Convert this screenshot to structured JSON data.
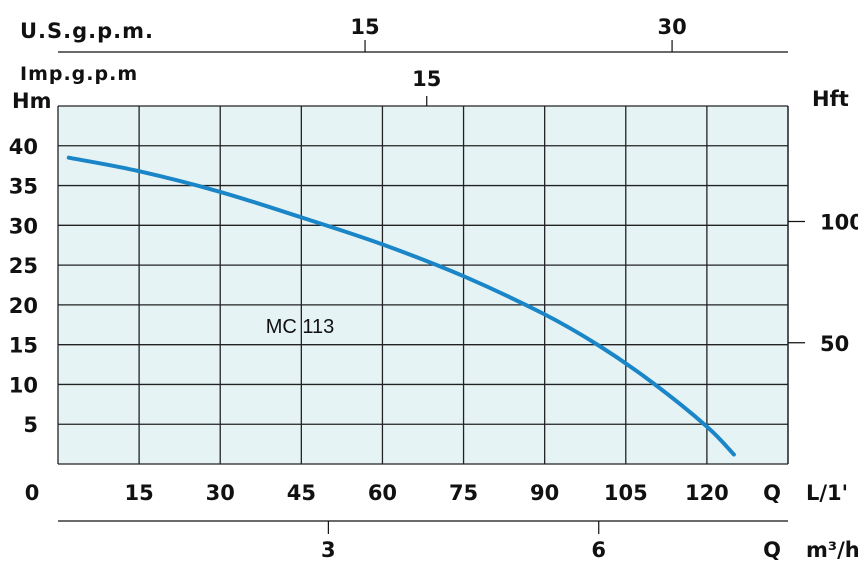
{
  "chart_data": {
    "type": "line",
    "curve_label": "MC 113",
    "left_axis": {
      "label": "Hm",
      "ticks": [
        5,
        10,
        15,
        20,
        25,
        30,
        35,
        40
      ],
      "range": [
        0,
        40
      ]
    },
    "right_axis": {
      "label": "Hft",
      "ticks": [
        100,
        50
      ]
    },
    "bottom_axis": {
      "label": "L/1'",
      "q_label": "Q",
      "ticks": [
        0,
        15,
        30,
        45,
        60,
        75,
        90,
        105,
        120
      ],
      "range": [
        0,
        135
      ]
    },
    "m3h_axis": {
      "label": "m³/h",
      "q_label": "Q",
      "ticks": [
        3,
        6
      ]
    },
    "usgpm_axis": {
      "label": "U.S.g.p.m.",
      "ticks": [
        15,
        30
      ]
    },
    "impgpm_axis": {
      "label": "Imp.g.p.m",
      "ticks": [
        15
      ]
    },
    "series": [
      {
        "x": [
          2,
          15,
          30,
          45,
          60,
          75,
          90,
          100,
          110,
          120,
          125
        ],
        "y": [
          38.5,
          36.8,
          34.2,
          31.0,
          27.6,
          23.6,
          18.8,
          14.9,
          10.2,
          4.7,
          1.2
        ]
      }
    ],
    "grid": true,
    "colors": {
      "curve": "#1a86c8",
      "plot_background": "#e6f3f5",
      "grid": "#222222"
    }
  }
}
